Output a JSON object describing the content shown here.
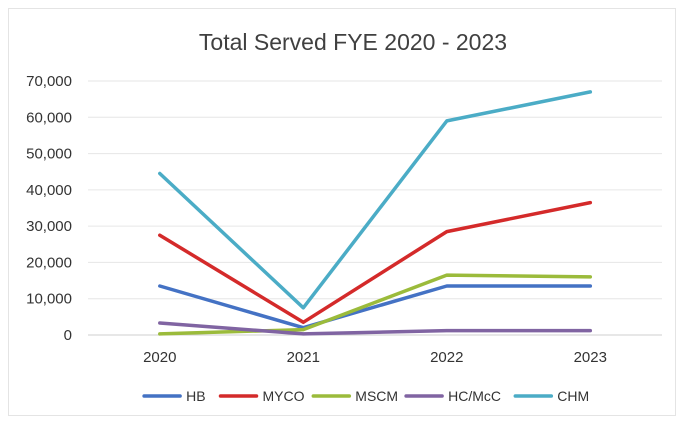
{
  "chart_data": {
    "type": "line",
    "title": "Total Served FYE 2020 - 2023",
    "xlabel": "",
    "ylabel": "",
    "categories": [
      "2020",
      "2021",
      "2022",
      "2023"
    ],
    "ylim": [
      0,
      70000
    ],
    "yticks": [
      0,
      10000,
      20000,
      30000,
      40000,
      50000,
      60000,
      70000
    ],
    "ytick_labels": [
      "0",
      "10,000",
      "20,000",
      "30,000",
      "40,000",
      "50,000",
      "60,000",
      "70,000"
    ],
    "grid": true,
    "legend_position": "bottom",
    "series": [
      {
        "name": "HB",
        "color": "#4472C4",
        "values": [
          13500,
          2000,
          13500,
          13500
        ]
      },
      {
        "name": "MYCO",
        "color": "#D42A2A",
        "values": [
          27500,
          3500,
          28500,
          36500
        ]
      },
      {
        "name": "MSCM",
        "color": "#9BBB3B",
        "values": [
          300,
          1500,
          16500,
          16000
        ]
      },
      {
        "name": "HC/McC",
        "color": "#8064A2",
        "values": [
          3300,
          300,
          1200,
          1200
        ]
      },
      {
        "name": "CHM",
        "color": "#4BACC6",
        "values": [
          44500,
          7500,
          59000,
          67000
        ]
      }
    ]
  }
}
